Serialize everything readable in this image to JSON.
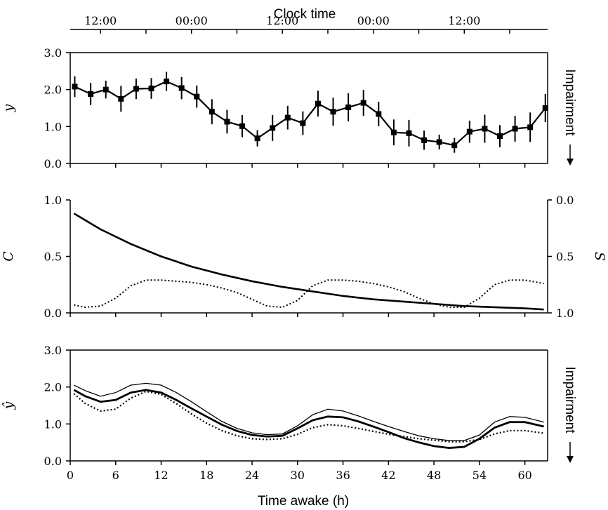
{
  "figure": {
    "top_axis_title": "Clock time",
    "bottom_axis_title": "Time awake (h)",
    "clock_tick_labels": [
      "12:00",
      "00:00",
      "12:00",
      "00:00",
      "12:00"
    ],
    "time_awake_ticks": [
      0,
      6,
      12,
      18,
      24,
      30,
      36,
      42,
      48,
      54,
      60
    ]
  },
  "chart_data": [
    {
      "type": "line",
      "panel": "top",
      "ylabel": "y",
      "right_label": "Impairment",
      "right_arrow": "down",
      "ylim": [
        0.0,
        3.0
      ],
      "yticks": [
        "0.0",
        "1.0",
        "2.0",
        "3.0"
      ],
      "xlim": [
        0,
        63
      ],
      "series": [
        {
          "x": [
            0.6,
            2.7,
            4.7,
            6.7,
            8.7,
            10.7,
            12.7,
            14.7,
            16.7,
            18.7,
            20.7,
            22.7,
            24.7,
            26.7,
            28.7,
            30.7,
            32.7,
            34.7,
            36.7,
            38.7,
            40.7,
            42.7,
            44.7,
            46.7,
            48.7,
            50.7,
            52.7,
            54.7,
            56.7,
            58.7,
            60.7,
            62.7
          ],
          "y": [
            2.08,
            1.88,
            2.0,
            1.75,
            2.02,
            2.03,
            2.22,
            2.04,
            1.81,
            1.4,
            1.13,
            1.01,
            0.68,
            0.96,
            1.24,
            1.09,
            1.62,
            1.4,
            1.52,
            1.64,
            1.34,
            0.84,
            0.82,
            0.63,
            0.58,
            0.49,
            0.86,
            0.94,
            0.74,
            0.94,
            0.98,
            1.5
          ],
          "err": [
            0.28,
            0.3,
            0.24,
            0.35,
            0.28,
            0.28,
            0.26,
            0.3,
            0.3,
            0.34,
            0.32,
            0.3,
            0.22,
            0.35,
            0.32,
            0.32,
            0.35,
            0.38,
            0.38,
            0.35,
            0.33,
            0.35,
            0.36,
            0.26,
            0.2,
            0.2,
            0.3,
            0.38,
            0.3,
            0.35,
            0.4,
            0.38
          ]
        }
      ]
    },
    {
      "type": "line",
      "panel": "middle",
      "ylabel": "C",
      "ylabel_right": "S",
      "ylim": [
        0.0,
        1.0
      ],
      "yticks": [
        "0.0",
        "0.5",
        "1.0"
      ],
      "right_yticks": [
        "0.0",
        "0.5",
        "1.0"
      ],
      "xlim": [
        0,
        63
      ],
      "series": [
        {
          "style": "solid",
          "x": [
            0.5,
            4,
            8,
            12,
            16,
            20,
            24,
            28,
            32,
            36,
            40,
            44,
            48,
            52,
            56,
            60,
            62.5
          ],
          "y": [
            0.12,
            0.26,
            0.39,
            0.5,
            0.59,
            0.66,
            0.72,
            0.77,
            0.81,
            0.85,
            0.88,
            0.9,
            0.92,
            0.94,
            0.95,
            0.96,
            0.97
          ]
        },
        {
          "style": "dotted",
          "x": [
            0.5,
            2,
            4,
            6,
            8,
            10,
            12,
            14,
            16,
            18,
            20,
            22,
            24,
            26,
            28,
            30,
            32,
            34,
            36,
            38,
            40,
            42,
            44,
            46,
            48,
            50,
            52,
            54,
            56,
            58,
            60,
            62.5
          ],
          "y": [
            0.07,
            0.05,
            0.06,
            0.13,
            0.24,
            0.29,
            0.29,
            0.28,
            0.27,
            0.25,
            0.22,
            0.18,
            0.12,
            0.06,
            0.05,
            0.11,
            0.24,
            0.29,
            0.29,
            0.28,
            0.26,
            0.23,
            0.19,
            0.13,
            0.08,
            0.05,
            0.05,
            0.13,
            0.25,
            0.29,
            0.29,
            0.26
          ]
        }
      ]
    },
    {
      "type": "line",
      "panel": "bottom",
      "ylabel": "ŷ",
      "right_label": "Impairment",
      "right_arrow": "down",
      "xlabel": "Time awake (h)",
      "ylim": [
        0.0,
        3.0
      ],
      "yticks": [
        "0.0",
        "1.0",
        "2.0",
        "3.0"
      ],
      "xlim": [
        0,
        63
      ],
      "series": [
        {
          "style": "thin",
          "x": [
            0.5,
            2,
            4,
            6,
            8,
            10,
            12,
            14,
            16,
            18,
            20,
            22,
            24,
            26,
            28,
            30,
            32,
            34,
            36,
            38,
            40,
            42,
            44,
            46,
            48,
            50,
            52,
            54,
            56,
            58,
            60,
            62.5
          ],
          "y": [
            2.05,
            1.9,
            1.75,
            1.85,
            2.05,
            2.1,
            2.05,
            1.85,
            1.6,
            1.33,
            1.07,
            0.88,
            0.76,
            0.71,
            0.73,
            0.95,
            1.25,
            1.4,
            1.35,
            1.22,
            1.07,
            0.93,
            0.8,
            0.68,
            0.6,
            0.55,
            0.55,
            0.7,
            1.05,
            1.2,
            1.18,
            1.05
          ]
        },
        {
          "style": "thick",
          "x": [
            0.5,
            2,
            4,
            6,
            8,
            10,
            12,
            14,
            16,
            18,
            20,
            22,
            24,
            26,
            28,
            30,
            32,
            34,
            36,
            38,
            40,
            42,
            44,
            46,
            48,
            50,
            52,
            54,
            56,
            58,
            60,
            62.5
          ],
          "y": [
            1.92,
            1.75,
            1.6,
            1.65,
            1.85,
            1.92,
            1.85,
            1.65,
            1.42,
            1.2,
            0.98,
            0.81,
            0.7,
            0.66,
            0.68,
            0.88,
            1.1,
            1.2,
            1.18,
            1.07,
            0.93,
            0.78,
            0.62,
            0.5,
            0.4,
            0.35,
            0.38,
            0.6,
            0.9,
            1.05,
            1.05,
            0.93
          ]
        },
        {
          "style": "dotted",
          "x": [
            0.5,
            2,
            4,
            6,
            8,
            10,
            12,
            14,
            16,
            18,
            20,
            22,
            24,
            26,
            28,
            30,
            32,
            34,
            36,
            38,
            40,
            42,
            44,
            46,
            48,
            50,
            52,
            54,
            56,
            58,
            60,
            62.5
          ],
          "y": [
            1.82,
            1.55,
            1.35,
            1.4,
            1.7,
            1.88,
            1.8,
            1.55,
            1.27,
            1.02,
            0.82,
            0.68,
            0.6,
            0.58,
            0.6,
            0.72,
            0.9,
            0.98,
            0.95,
            0.88,
            0.8,
            0.72,
            0.66,
            0.6,
            0.56,
            0.52,
            0.52,
            0.58,
            0.73,
            0.82,
            0.82,
            0.75
          ]
        }
      ]
    }
  ]
}
